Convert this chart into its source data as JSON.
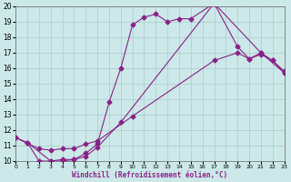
{
  "xlabel": "Windchill (Refroidissement éolien,°C)",
  "bg_color": "#cce8e8",
  "grid_color": "#aacccc",
  "line_color": "#882288",
  "xmin": 0,
  "xmax": 23,
  "ymin": 10,
  "ymax": 20,
  "xtick_labels": [
    "0",
    "1",
    "2",
    "3",
    "4",
    "5",
    "6",
    "7",
    "8",
    "9",
    "1011",
    "1213",
    "1415",
    " 17",
    "  1920",
    "212223"
  ],
  "yticks": [
    10,
    11,
    12,
    13,
    14,
    15,
    16,
    17,
    18,
    19,
    20
  ],
  "series1_x": [
    0,
    1,
    2,
    3,
    4,
    5,
    6,
    7,
    8,
    9,
    10,
    11,
    12,
    13,
    14,
    15,
    17,
    19,
    20,
    21,
    22,
    23
  ],
  "series1_y": [
    11.5,
    11.2,
    10.0,
    10.0,
    10.1,
    10.1,
    10.5,
    11.1,
    13.8,
    16.0,
    18.8,
    19.3,
    19.5,
    19.0,
    19.2,
    19.2,
    20.2,
    17.4,
    16.6,
    17.0,
    16.5,
    15.7
  ],
  "series2_x": [
    0,
    2,
    3,
    4,
    5,
    6,
    7,
    10,
    17,
    19,
    20,
    21,
    22,
    23
  ],
  "series2_y": [
    11.5,
    10.8,
    10.7,
    10.8,
    10.8,
    11.1,
    11.3,
    12.9,
    16.5,
    17.0,
    16.6,
    16.9,
    16.5,
    15.8
  ],
  "series3_x": [
    1,
    3,
    4,
    5,
    6,
    7,
    9,
    17,
    21,
    23
  ],
  "series3_y": [
    11.2,
    10.0,
    10.0,
    10.1,
    10.3,
    10.9,
    12.5,
    20.2,
    17.0,
    15.7
  ]
}
